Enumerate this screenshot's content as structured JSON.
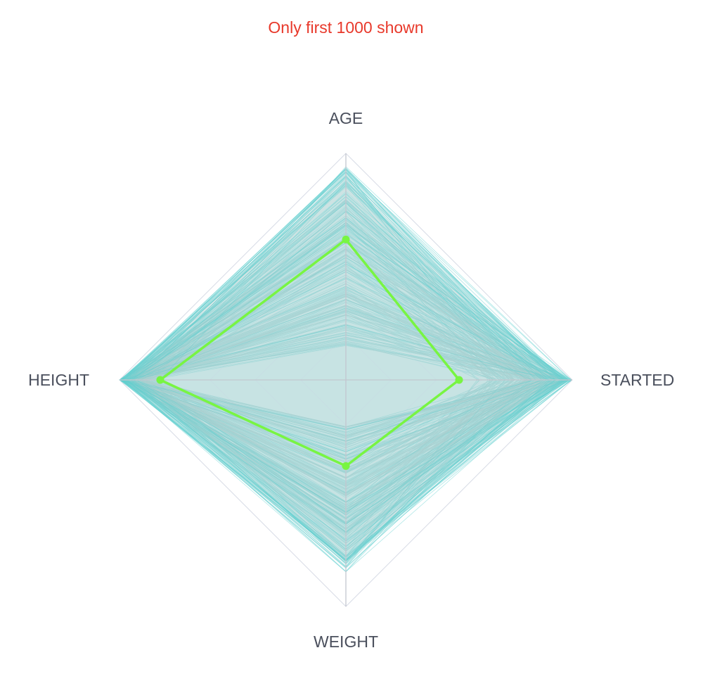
{
  "notice": {
    "text": "Only first 1000 shown",
    "color": "#e8392b"
  },
  "chart_data": {
    "type": "radar",
    "axes": [
      "AGE",
      "STARTED",
      "WEIGHT",
      "HEIGHT"
    ],
    "scale": {
      "min": 0,
      "max": 1,
      "rings": 5
    },
    "grid": true,
    "background_records": {
      "shown_count": 1000,
      "color": "#5fcfcf",
      "fill_color": "#c7d9e3",
      "typical_ranges": {
        "AGE": [
          0.15,
          0.95
        ],
        "STARTED": [
          0.5,
          1.0
        ],
        "WEIGHT": [
          0.2,
          0.85
        ],
        "HEIGHT": [
          0.8,
          1.0
        ]
      }
    },
    "highlighted_record": {
      "color": "#78f542",
      "values": {
        "AGE": 0.62,
        "STARTED": 0.5,
        "WEIGHT": 0.38,
        "HEIGHT": 0.82
      }
    },
    "colors": {
      "grid": "#d8dce6",
      "axis": "#c3c7cf",
      "label": "#4a4f5c"
    }
  }
}
